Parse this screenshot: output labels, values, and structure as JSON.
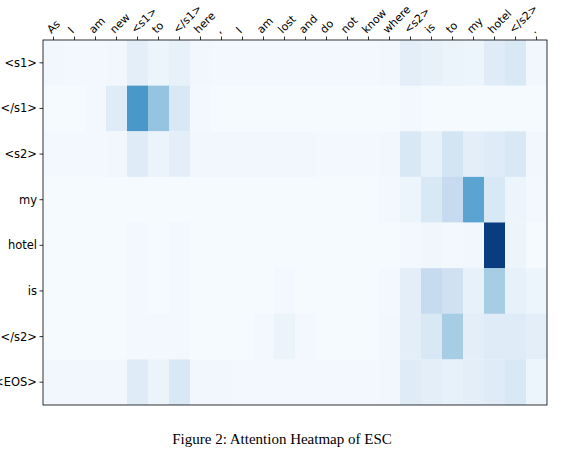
{
  "chart_data": {
    "type": "heatmap",
    "caption": "Figure 2: Attention Heatmap of ESC",
    "x": [
      "As",
      "I",
      "am",
      "new",
      "<s1>",
      "to",
      "</s1>",
      "here",
      ",",
      "I",
      "am",
      "lost",
      "and",
      "do",
      "not",
      "know",
      "where",
      "<s2>",
      "is",
      "to",
      "my",
      "hotel",
      "</s2>",
      "."
    ],
    "y": [
      "<s1>",
      "</s1>",
      "<s2>",
      "my",
      "hotel",
      "is",
      "</s2>",
      "<EOS>"
    ],
    "zlim": [
      0,
      1
    ],
    "color": "Blues",
    "grid": false,
    "cells": [
      [
        0.03,
        0.02,
        0.02,
        0.03,
        0.1,
        0.05,
        0.08,
        0.03,
        0.02,
        0.02,
        0.02,
        0.02,
        0.02,
        0.02,
        0.02,
        0.02,
        0.03,
        0.1,
        0.08,
        0.06,
        0.05,
        0.12,
        0.15,
        0.03
      ],
      [
        0.01,
        0.01,
        0.02,
        0.12,
        0.6,
        0.4,
        0.15,
        0.02,
        0.01,
        0.01,
        0.01,
        0.01,
        0.01,
        0.01,
        0.01,
        0.01,
        0.01,
        0.02,
        0.01,
        0.01,
        0.01,
        0.01,
        0.01,
        0.01
      ],
      [
        0.02,
        0.02,
        0.02,
        0.03,
        0.12,
        0.06,
        0.1,
        0.03,
        0.03,
        0.03,
        0.03,
        0.03,
        0.03,
        0.02,
        0.02,
        0.02,
        0.03,
        0.15,
        0.08,
        0.18,
        0.1,
        0.12,
        0.15,
        0.03
      ],
      [
        0.01,
        0.01,
        0.01,
        0.01,
        0.01,
        0.01,
        0.01,
        0.01,
        0.01,
        0.01,
        0.01,
        0.01,
        0.01,
        0.01,
        0.01,
        0.01,
        0.02,
        0.05,
        0.15,
        0.25,
        0.55,
        0.15,
        0.05,
        0.02
      ],
      [
        0.01,
        0.01,
        0.01,
        0.01,
        0.02,
        0.01,
        0.02,
        0.01,
        0.01,
        0.01,
        0.01,
        0.01,
        0.01,
        0.01,
        0.01,
        0.01,
        0.01,
        0.02,
        0.04,
        0.02,
        0.03,
        0.95,
        0.05,
        0.01
      ],
      [
        0.01,
        0.01,
        0.01,
        0.01,
        0.02,
        0.01,
        0.02,
        0.01,
        0.01,
        0.01,
        0.01,
        0.02,
        0.01,
        0.01,
        0.01,
        0.01,
        0.02,
        0.1,
        0.25,
        0.2,
        0.08,
        0.35,
        0.08,
        0.05
      ],
      [
        0.01,
        0.01,
        0.01,
        0.01,
        0.02,
        0.02,
        0.02,
        0.01,
        0.01,
        0.01,
        0.02,
        0.06,
        0.02,
        0.01,
        0.01,
        0.01,
        0.03,
        0.1,
        0.15,
        0.35,
        0.1,
        0.12,
        0.12,
        0.1
      ],
      [
        0.03,
        0.03,
        0.03,
        0.03,
        0.12,
        0.06,
        0.15,
        0.03,
        0.03,
        0.02,
        0.02,
        0.02,
        0.02,
        0.02,
        0.02,
        0.02,
        0.03,
        0.12,
        0.1,
        0.08,
        0.1,
        0.12,
        0.15,
        0.05
      ]
    ]
  }
}
